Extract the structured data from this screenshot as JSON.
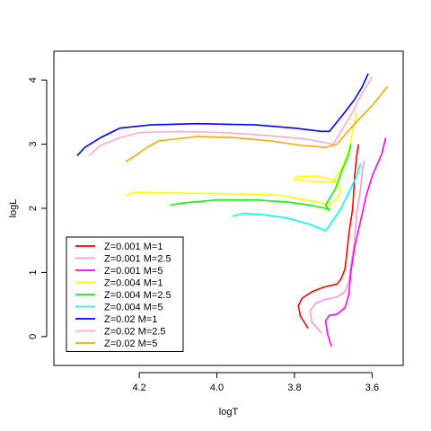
{
  "chart_data": {
    "type": "line",
    "xlabel": "logT",
    "ylabel": "logL",
    "xlim": [
      4.42,
      3.52
    ],
    "ylim": [
      -0.45,
      4.45
    ],
    "x_reversed": true,
    "x_ticks": [
      4.2,
      4.0,
      3.8,
      3.6
    ],
    "x_tick_labels": [
      "4.2",
      "4.0",
      "3.8",
      "3.6"
    ],
    "y_ticks": [
      0,
      1,
      2,
      3,
      4
    ],
    "y_tick_labels": [
      "0",
      "1",
      "2",
      "3",
      "4"
    ],
    "grid": false,
    "legend_position": "bottom-left",
    "series": [
      {
        "name": "Z=0.001 M=1",
        "color": "#ff0000",
        "points": [
          [
            3.765,
            0.13
          ],
          [
            3.785,
            0.32
          ],
          [
            3.79,
            0.48
          ],
          [
            3.78,
            0.6
          ],
          [
            3.755,
            0.7
          ],
          [
            3.725,
            0.77
          ],
          [
            3.69,
            0.82
          ],
          [
            3.68,
            0.9
          ],
          [
            3.67,
            1.05
          ],
          [
            3.665,
            1.3
          ],
          [
            3.66,
            1.6
          ],
          [
            3.65,
            2.0
          ],
          [
            3.645,
            2.5
          ],
          [
            3.64,
            2.8
          ],
          [
            3.635,
            3.0
          ]
        ]
      },
      {
        "name": "Z=0.001 M=2.5",
        "color": "#ff99cc",
        "points": [
          [
            3.73,
            0.06
          ],
          [
            3.755,
            0.22
          ],
          [
            3.76,
            0.4
          ],
          [
            3.745,
            0.52
          ],
          [
            3.72,
            0.58
          ],
          [
            3.69,
            0.62
          ],
          [
            3.67,
            0.7
          ],
          [
            3.66,
            0.85
          ],
          [
            3.655,
            1.1
          ],
          [
            3.645,
            1.5
          ],
          [
            3.64,
            1.9
          ],
          [
            3.63,
            2.3
          ],
          [
            3.625,
            2.6
          ],
          [
            3.62,
            2.75
          ]
        ]
      },
      {
        "name": "Z=0.001 M=5",
        "color": "#ff00ff",
        "points": [
          [
            3.705,
            -0.15
          ],
          [
            3.715,
            0.05
          ],
          [
            3.72,
            0.25
          ],
          [
            3.71,
            0.33
          ],
          [
            3.69,
            0.35
          ],
          [
            3.67,
            0.45
          ],
          [
            3.66,
            0.65
          ],
          [
            3.655,
            1.0
          ],
          [
            3.645,
            1.4
          ],
          [
            3.63,
            1.8
          ],
          [
            3.615,
            2.2
          ],
          [
            3.6,
            2.5
          ],
          [
            3.575,
            2.85
          ],
          [
            3.565,
            3.1
          ]
        ]
      },
      {
        "name": "Z=0.004 M=1",
        "color": "#ffff00",
        "points": [
          [
            4.235,
            2.2
          ],
          [
            4.21,
            2.25
          ],
          [
            4.13,
            2.24
          ],
          [
            4.0,
            2.23
          ],
          [
            3.9,
            2.22
          ],
          [
            3.83,
            2.2
          ],
          [
            3.79,
            2.15
          ],
          [
            3.74,
            2.1
          ],
          [
            3.71,
            2.05
          ],
          [
            3.69,
            2.15
          ],
          [
            3.68,
            2.3
          ],
          [
            3.7,
            2.45
          ],
          [
            3.74,
            2.5
          ],
          [
            3.79,
            2.5
          ],
          [
            3.8,
            2.45
          ],
          [
            3.75,
            2.42
          ],
          [
            3.7,
            2.42
          ],
          [
            3.68,
            2.6
          ],
          [
            3.66,
            2.9
          ],
          [
            3.65,
            3.2
          ],
          [
            3.64,
            3.5
          ]
        ]
      },
      {
        "name": "Z=0.004 M=2.5",
        "color": "#00ff00",
        "points": [
          [
            4.12,
            2.05
          ],
          [
            4.09,
            2.08
          ],
          [
            4.06,
            2.1
          ],
          [
            4.0,
            2.13
          ],
          [
            3.9,
            2.13
          ],
          [
            3.82,
            2.1
          ],
          [
            3.76,
            2.05
          ],
          [
            3.72,
            2.0
          ],
          [
            3.71,
            1.97
          ],
          [
            3.72,
            2.05
          ],
          [
            3.71,
            2.15
          ],
          [
            3.695,
            2.3
          ],
          [
            3.68,
            2.55
          ],
          [
            3.66,
            2.85
          ],
          [
            3.655,
            3.0
          ]
        ]
      },
      {
        "name": "Z=0.004 M=5",
        "color": "#00ffff",
        "points": [
          [
            3.96,
            1.88
          ],
          [
            3.93,
            1.92
          ],
          [
            3.88,
            1.9
          ],
          [
            3.82,
            1.85
          ],
          [
            3.76,
            1.75
          ],
          [
            3.72,
            1.65
          ],
          [
            3.7,
            1.82
          ],
          [
            3.68,
            2.0
          ],
          [
            3.66,
            2.25
          ],
          [
            3.64,
            2.5
          ],
          [
            3.63,
            2.7
          ]
        ]
      },
      {
        "name": "Z=0.02 M=1",
        "color": "#0000ff",
        "points": [
          [
            4.36,
            2.82
          ],
          [
            4.34,
            2.95
          ],
          [
            4.3,
            3.1
          ],
          [
            4.25,
            3.25
          ],
          [
            4.17,
            3.3
          ],
          [
            4.05,
            3.32
          ],
          [
            3.9,
            3.3
          ],
          [
            3.8,
            3.25
          ],
          [
            3.73,
            3.2
          ],
          [
            3.71,
            3.2
          ],
          [
            3.69,
            3.35
          ],
          [
            3.67,
            3.5
          ],
          [
            3.645,
            3.7
          ],
          [
            3.625,
            3.9
          ],
          [
            3.61,
            4.1
          ]
        ]
      },
      {
        "name": "Z=0.02 M=2.5",
        "color": "#ffaacc",
        "points": [
          [
            4.33,
            2.82
          ],
          [
            4.3,
            2.98
          ],
          [
            4.25,
            3.1
          ],
          [
            4.2,
            3.18
          ],
          [
            4.1,
            3.2
          ],
          [
            3.98,
            3.18
          ],
          [
            3.86,
            3.13
          ],
          [
            3.77,
            3.08
          ],
          [
            3.7,
            3.0
          ],
          [
            3.68,
            3.2
          ],
          [
            3.65,
            3.5
          ],
          [
            3.63,
            3.75
          ],
          [
            3.6,
            4.05
          ]
        ]
      },
      {
        "name": "Z=0.02 M=5",
        "color": "#ffa500",
        "points": [
          [
            4.235,
            2.73
          ],
          [
            4.21,
            2.82
          ],
          [
            4.18,
            2.95
          ],
          [
            4.15,
            3.05
          ],
          [
            4.05,
            3.12
          ],
          [
            3.95,
            3.1
          ],
          [
            3.86,
            3.05
          ],
          [
            3.78,
            2.98
          ],
          [
            3.72,
            2.95
          ],
          [
            3.69,
            3.0
          ],
          [
            3.67,
            3.15
          ],
          [
            3.64,
            3.35
          ],
          [
            3.6,
            3.6
          ],
          [
            3.56,
            3.9
          ]
        ]
      }
    ]
  }
}
